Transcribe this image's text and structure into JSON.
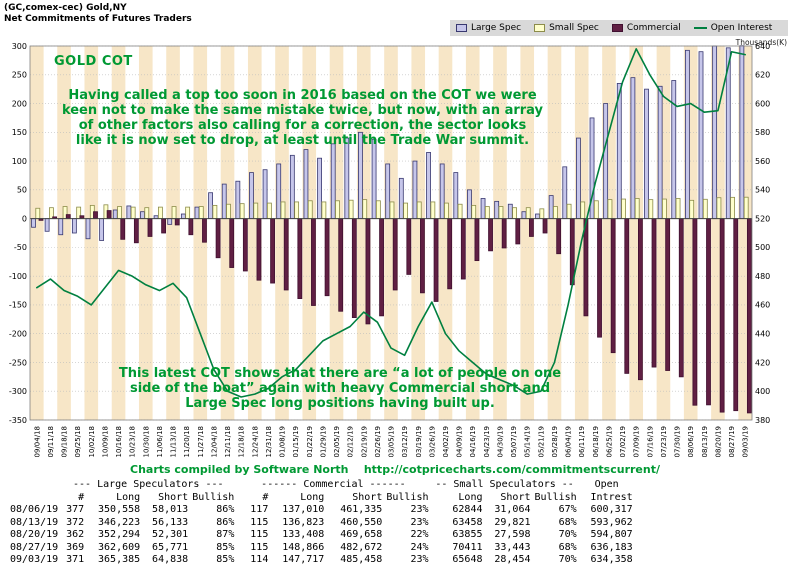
{
  "header": {
    "line1": "(GC,comex-cec) Gold,NY",
    "line2": "Net Commitments of Futures Traders"
  },
  "legend": [
    {
      "label": "Large Spec"
    },
    {
      "label": "Small Spec"
    },
    {
      "label": "Commercial"
    },
    {
      "label": "Open Interest"
    }
  ],
  "annotations": {
    "title": "GOLD COT",
    "para1": [
      "Having called a top too soon in 2016 based on the COT we were",
      "keen not to make the same mistake twice, but now, with an array",
      "of other factors also calling for a correction, the sector looks",
      "like it is now set to drop, at least until the Trade War summit."
    ],
    "para2": [
      "This latest COT shows that there are “a lot of people on one",
      "side of the boat” again with heavy Commercial short and",
      "Large Spec long positions having built up."
    ]
  },
  "footer": {
    "prefix": "Charts compiled by Software North",
    "url": "http://cotpricecharts.com/commitmentscurrent/"
  },
  "colors": {
    "stripe": "#f7e6c7",
    "grid": "#bdbdbd",
    "zero_line": "#444444",
    "plot_border": "#808080",
    "annotation_green": "#009933",
    "axis_text": "#000000"
  },
  "chart_data": {
    "type": "bar",
    "grid": true,
    "legend_position": "top-right",
    "left_axis": {
      "min": -350,
      "max": 300,
      "step": 50
    },
    "right_axis": {
      "min": 380,
      "max": 640,
      "step": 20,
      "label": "Thousands(K)"
    },
    "x": [
      "09/04/18",
      "09/11/18",
      "09/18/18",
      "09/25/18",
      "10/02/18",
      "10/09/18",
      "10/16/18",
      "10/23/18",
      "10/30/18",
      "11/06/18",
      "11/13/18",
      "11/20/18",
      "11/27/18",
      "12/04/18",
      "12/11/18",
      "12/18/18",
      "12/24/18",
      "12/31/18",
      "01/08/19",
      "01/15/19",
      "01/22/19",
      "01/29/19",
      "02/05/19",
      "02/12/19",
      "02/19/19",
      "02/26/19",
      "03/05/19",
      "03/12/19",
      "03/19/19",
      "03/26/19",
      "04/02/19",
      "04/09/19",
      "04/16/19",
      "04/23/19",
      "04/30/19",
      "05/07/19",
      "05/14/19",
      "05/21/19",
      "05/28/19",
      "06/04/19",
      "06/11/19",
      "06/18/19",
      "06/25/19",
      "07/02/19",
      "07/09/19",
      "07/16/19",
      "07/23/19",
      "07/30/19",
      "08/06/19",
      "08/13/19",
      "08/20/19",
      "08/27/19",
      "09/03/19"
    ],
    "series": [
      {
        "name": "Large Spec",
        "type": "bar",
        "axis": "left",
        "color": "#c6c6ea",
        "border": "#383870",
        "values": [
          -15,
          -22,
          -28,
          -25,
          -35,
          -38,
          15,
          22,
          12,
          5,
          -10,
          8,
          20,
          45,
          60,
          65,
          80,
          85,
          95,
          110,
          120,
          105,
          130,
          140,
          150,
          138,
          95,
          70,
          100,
          115,
          95,
          80,
          50,
          35,
          30,
          25,
          12,
          8,
          40,
          90,
          140,
          175,
          200,
          235,
          245,
          225,
          230,
          240,
          292.5,
          290.1,
          300,
          296.8,
          300.5
        ]
      },
      {
        "name": "Small Spec",
        "type": "bar",
        "axis": "left",
        "color": "#ffffcc",
        "border": "#8c8c4a",
        "values": [
          18,
          19,
          21,
          20,
          23,
          24,
          21,
          20,
          19,
          20,
          21,
          20,
          21,
          23,
          25,
          26,
          27,
          27,
          29,
          29,
          31,
          29,
          31,
          32,
          33,
          31,
          29,
          27,
          29,
          29,
          27,
          25,
          23,
          21,
          21,
          19,
          19,
          17,
          21,
          25,
          29,
          31,
          33,
          34,
          35,
          33,
          34,
          35,
          31.8,
          33.6,
          36.3,
          37,
          37.2
        ]
      },
      {
        "name": "Commercial",
        "type": "bar",
        "axis": "left",
        "color": "#601f43",
        "border": "#401030",
        "values": [
          -3,
          3,
          7,
          5,
          12,
          14,
          -36,
          -42,
          -31,
          -25,
          -11,
          -28,
          -41,
          -68,
          -85,
          -91,
          -107,
          -112,
          -124,
          -139,
          -151,
          -134,
          -161,
          -172,
          -183,
          -169,
          -124,
          -97,
          -129,
          -144,
          -122,
          -105,
          -73,
          -56,
          -51,
          -44,
          -31,
          -25,
          -61,
          -115,
          -169,
          -206,
          -233,
          -269,
          -280,
          -258,
          -264,
          -275,
          -324.3,
          -323.7,
          -336.3,
          -333.8,
          -337.7
        ]
      },
      {
        "name": "Open Interest",
        "type": "line",
        "axis": "right",
        "color": "#008040",
        "values": [
          472,
          478,
          470,
          466,
          460,
          472,
          484,
          480,
          474,
          470,
          475,
          465,
          440,
          415,
          400,
          396,
          398,
          402,
          410,
          415,
          425,
          435,
          440,
          445,
          455,
          448,
          430,
          425,
          445,
          462,
          440,
          428,
          420,
          412,
          408,
          404,
          398,
          400,
          420,
          460,
          505,
          545,
          580,
          615,
          638,
          620,
          605,
          598,
          600,
          594,
          595,
          636,
          634
        ]
      }
    ]
  },
  "table": {
    "groups": [
      "--- Large Speculators ---",
      "------ Commercial ------",
      "-- Small Speculators --",
      "Open"
    ],
    "columns": [
      "",
      "#",
      "Long",
      "Short",
      "Bullish",
      "#",
      "Long",
      "Short",
      "Bullish",
      "Long",
      "Short",
      "Bullish",
      "Intrest"
    ],
    "rows": [
      [
        "08/06/19",
        "377",
        "350,558",
        "58,013",
        "86%",
        "117",
        "137,010",
        "461,335",
        "23%",
        "62844",
        "31,064",
        "67%",
        "600,317"
      ],
      [
        "08/13/19",
        "372",
        "346,223",
        "56,133",
        "86%",
        "115",
        "136,823",
        "460,550",
        "23%",
        "63458",
        "29,821",
        "68%",
        "593,962"
      ],
      [
        "08/20/19",
        "362",
        "352,294",
        "52,301",
        "87%",
        "115",
        "133,408",
        "469,658",
        "22%",
        "63855",
        "27,598",
        "70%",
        "594,807"
      ],
      [
        "08/27/19",
        "369",
        "362,609",
        "65,771",
        "85%",
        "115",
        "148,866",
        "482,672",
        "24%",
        "70411",
        "33,443",
        "68%",
        "636,183"
      ],
      [
        "09/03/19",
        "371",
        "365,385",
        "64,838",
        "85%",
        "114",
        "147,717",
        "485,458",
        "23%",
        "65648",
        "28,454",
        "70%",
        "634,358"
      ]
    ]
  }
}
